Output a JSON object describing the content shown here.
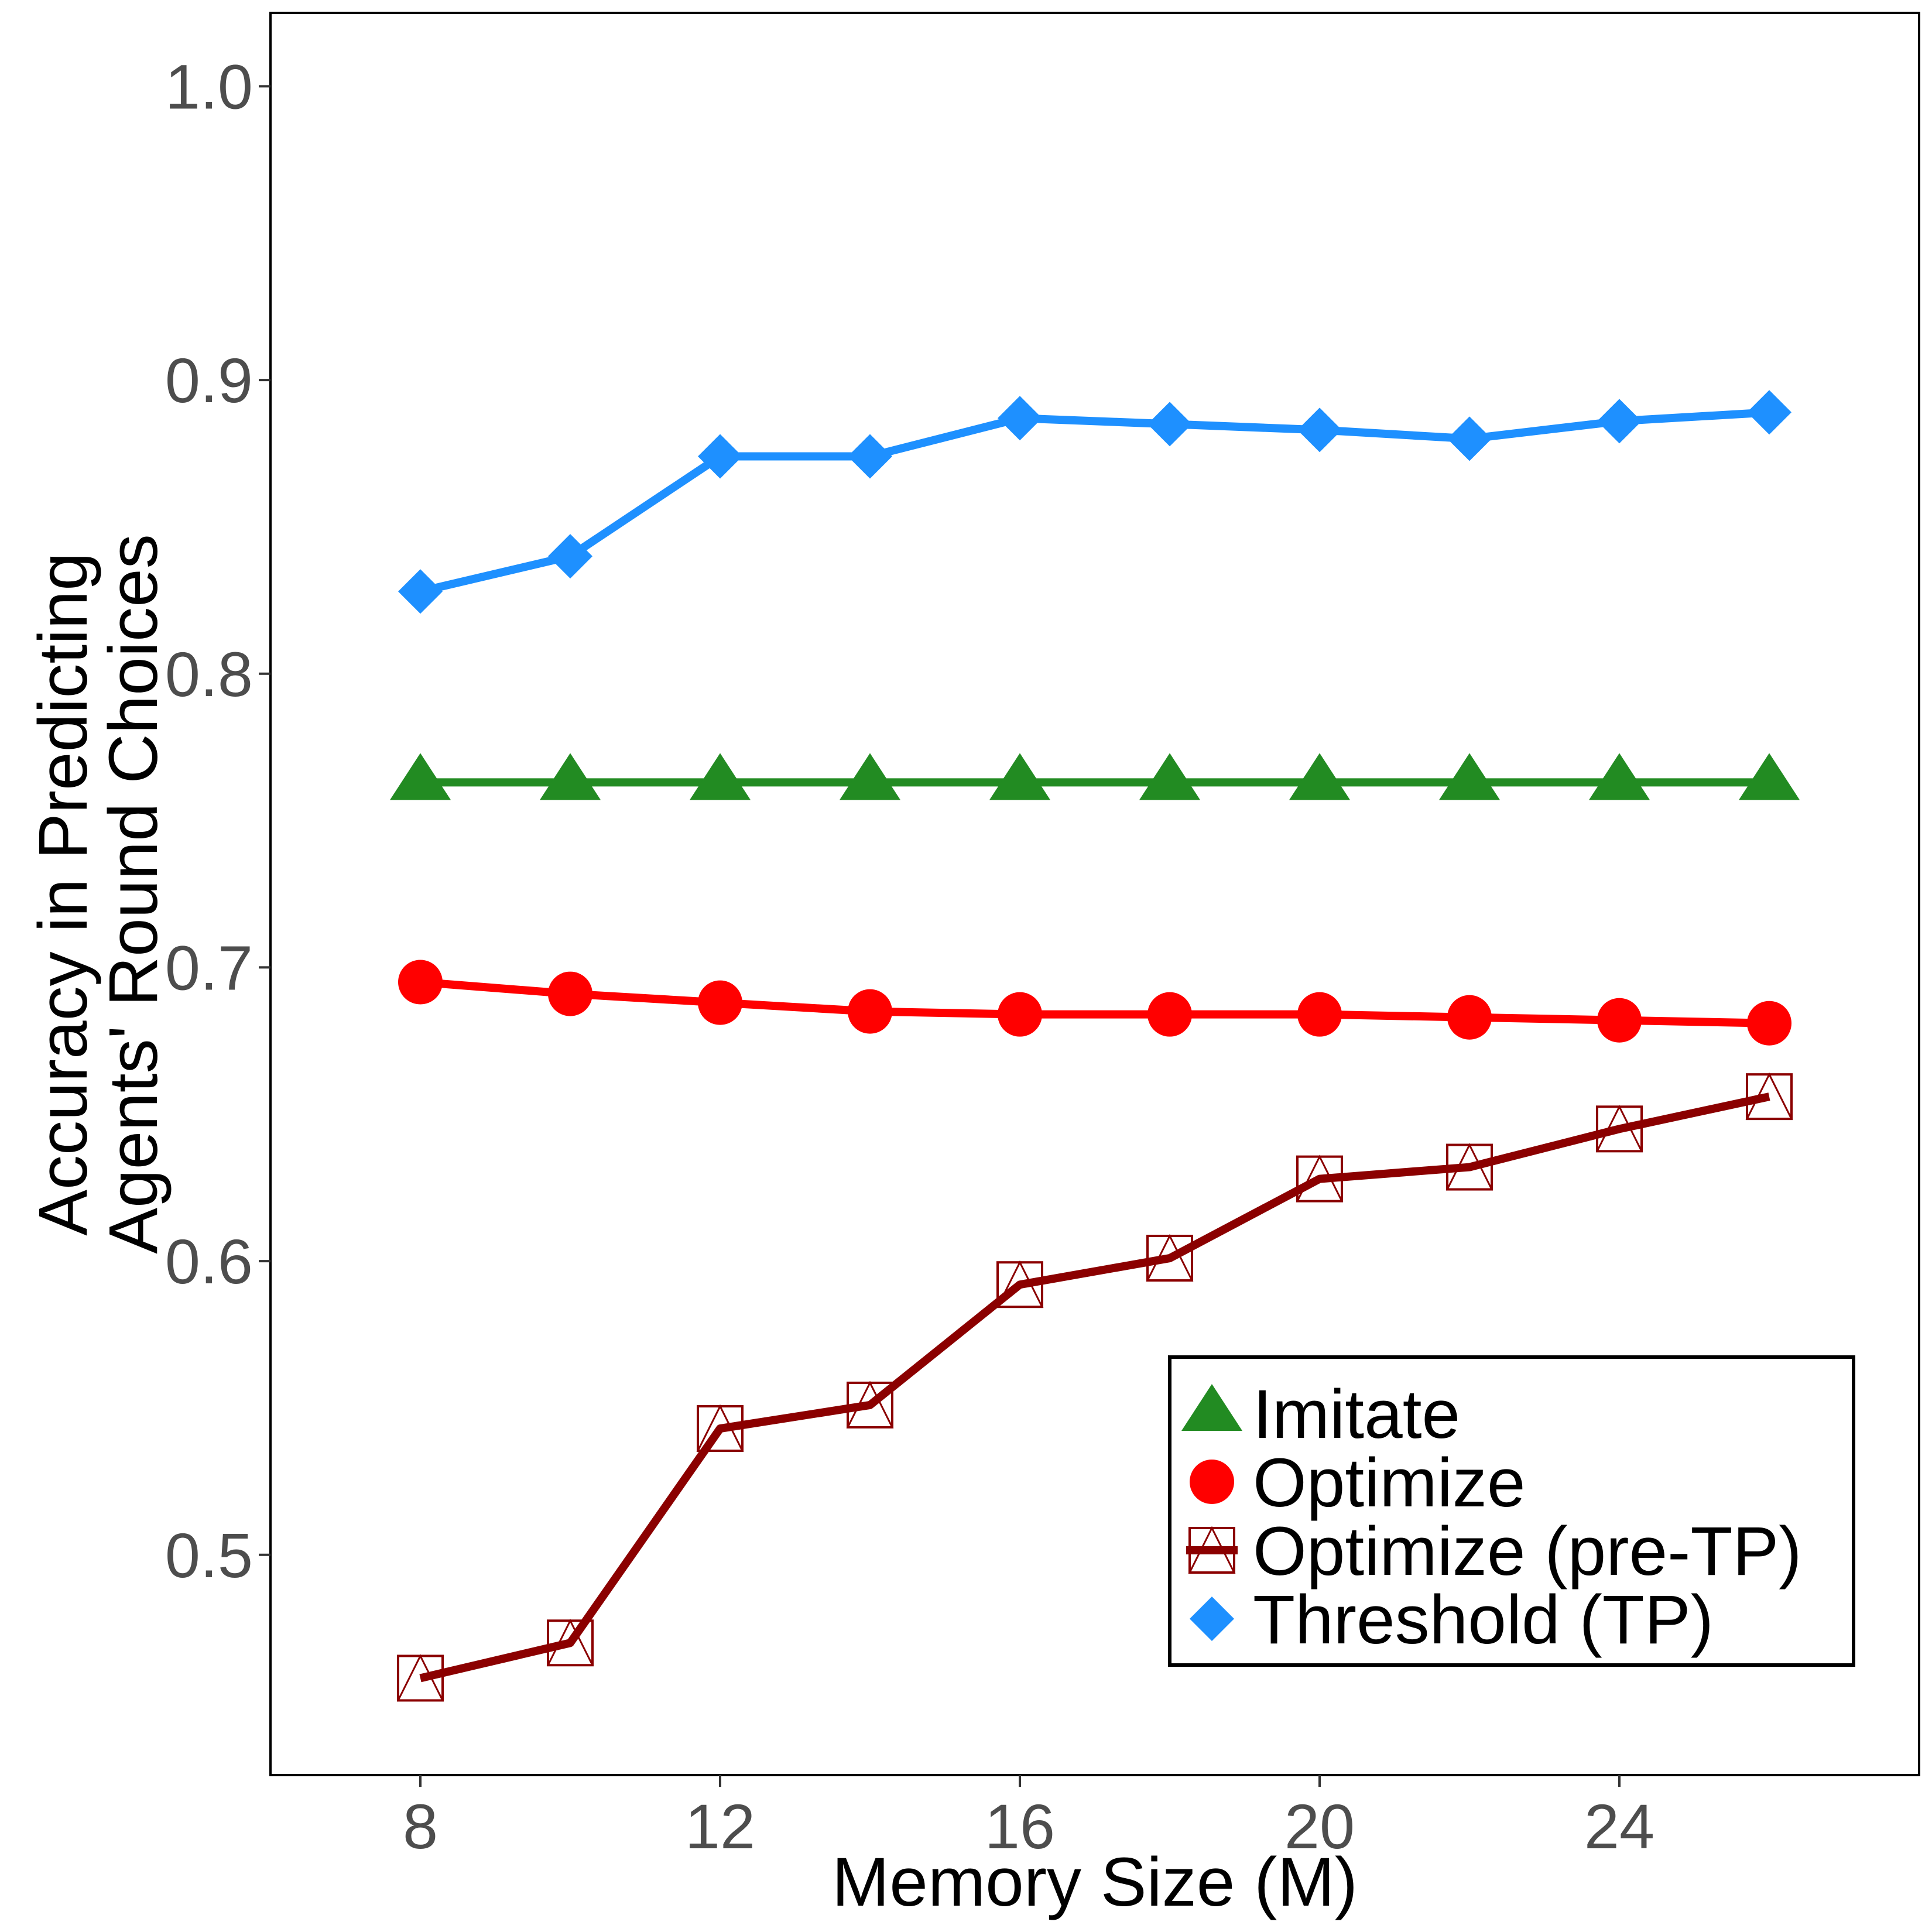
{
  "chart_data": {
    "type": "line",
    "title": "",
    "xlabel": "Memory Size (M)",
    "ylabel_lines": [
      "Accuracy in Predicting",
      "Agents' Round Choices"
    ],
    "xlim": [
      6,
      28
    ],
    "ylim": [
      0.425,
      1.025
    ],
    "x_ticks": [
      8,
      12,
      16,
      20,
      24
    ],
    "y_ticks": [
      0.5,
      0.6,
      0.7,
      0.8,
      0.9,
      1.0
    ],
    "y_tick_labels": [
      "0.5",
      "0.6",
      "0.7",
      "0.8",
      "0.9",
      "1.0"
    ],
    "grid": false,
    "legend_position": "bottom-right",
    "x": [
      8,
      10,
      12,
      14,
      16,
      18,
      20,
      22,
      24,
      26
    ],
    "series": [
      {
        "name": "Imitate",
        "color": "#228B22",
        "marker": "triangle",
        "values": [
          0.763,
          0.763,
          0.763,
          0.763,
          0.763,
          0.763,
          0.763,
          0.763,
          0.763,
          0.763
        ]
      },
      {
        "name": "Optimize",
        "color": "#FF0000",
        "marker": "circle",
        "values": [
          0.695,
          0.691,
          0.688,
          0.685,
          0.684,
          0.684,
          0.684,
          0.683,
          0.682,
          0.681
        ]
      },
      {
        "name": "Optimize (pre-TP)",
        "color": "#8B0000",
        "marker": "square-triangle",
        "values": [
          0.458,
          0.47,
          0.543,
          0.551,
          0.592,
          0.601,
          0.628,
          0.632,
          0.645,
          0.656
        ]
      },
      {
        "name": "Threshold (TP)",
        "color": "#1E90FF",
        "marker": "diamond",
        "values": [
          0.828,
          0.84,
          0.874,
          0.874,
          0.887,
          0.885,
          0.883,
          0.88,
          0.886,
          0.889
        ]
      }
    ]
  }
}
